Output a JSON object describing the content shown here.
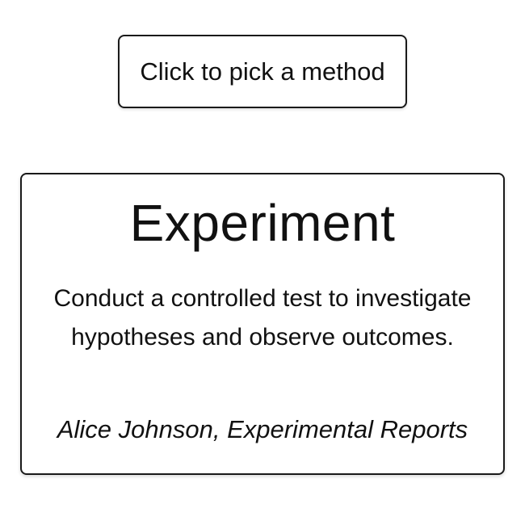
{
  "picker": {
    "button_label": "Click to pick a method"
  },
  "method": {
    "title": "Experiment",
    "description": "Conduct a controlled test to investigate hypotheses and observe outcomes.",
    "citation": "Alice Johnson, Experimental Reports"
  },
  "colors": {
    "background": "#ffffff",
    "border": "#1a1a1a",
    "text": "#111111"
  }
}
